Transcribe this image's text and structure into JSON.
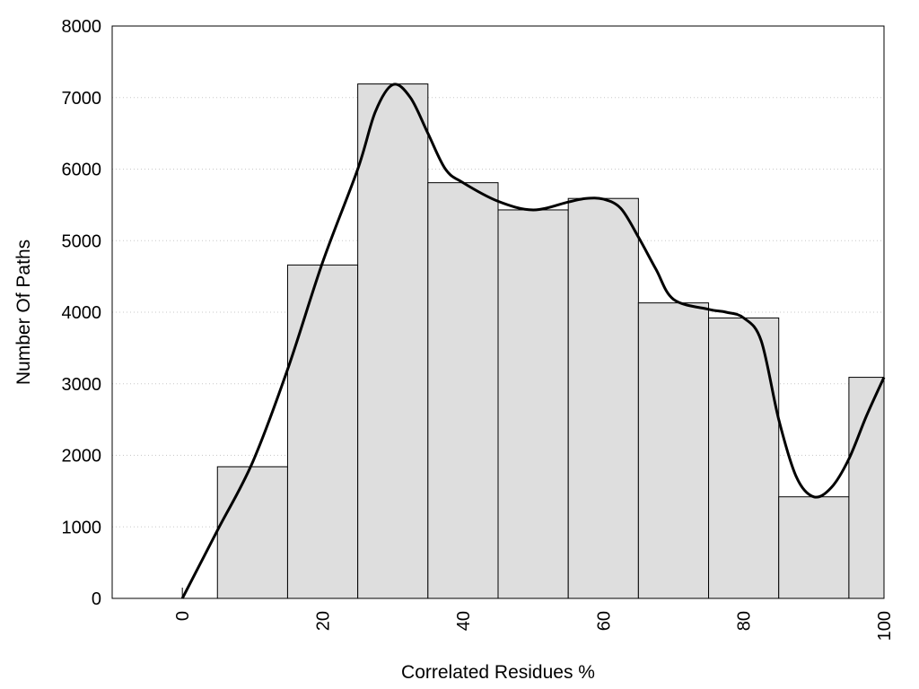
{
  "chart_data": {
    "type": "bar",
    "title": "",
    "xlabel": "Correlated Residues %",
    "ylabel": "Number Of Paths",
    "xlim": [
      -10,
      100
    ],
    "ylim": [
      0,
      8000
    ],
    "grid": "horizontal dotted",
    "xticks": [
      0,
      20,
      40,
      60,
      80,
      100
    ],
    "yticks": [
      0,
      1000,
      2000,
      3000,
      4000,
      5000,
      6000,
      7000,
      8000
    ],
    "bins": [
      {
        "center": 10,
        "value": 1840
      },
      {
        "center": 20,
        "value": 4660
      },
      {
        "center": 30,
        "value": 7190
      },
      {
        "center": 40,
        "value": 5810
      },
      {
        "center": 50,
        "value": 5430
      },
      {
        "center": 60,
        "value": 5590
      },
      {
        "center": 70,
        "value": 4130
      },
      {
        "center": 80,
        "value": 3920
      },
      {
        "center": 90,
        "value": 1420
      },
      {
        "center": 100,
        "value": 3090
      }
    ],
    "bin_width": 10,
    "curve": {
      "x": [
        0,
        5,
        10,
        15,
        20,
        25,
        27.5,
        30,
        32.5,
        35,
        37.5,
        40,
        45,
        50,
        55,
        57.5,
        60,
        62.5,
        65,
        67.5,
        70,
        75,
        77.5,
        80,
        82.5,
        85,
        87.5,
        90,
        92.5,
        95,
        97.5,
        100
      ],
      "y": [
        0,
        950,
        1900,
        3200,
        4700,
        6000,
        6800,
        7180,
        7000,
        6500,
        6000,
        5810,
        5550,
        5430,
        5540,
        5590,
        5580,
        5450,
        5050,
        4600,
        4180,
        4040,
        4000,
        3920,
        3600,
        2500,
        1700,
        1420,
        1550,
        1950,
        2550,
        3090
      ]
    },
    "colors": {
      "bar_fill": "#dedede",
      "bar_stroke": "#000000",
      "curve": "#000000",
      "grid": "#c8c8c8"
    }
  }
}
